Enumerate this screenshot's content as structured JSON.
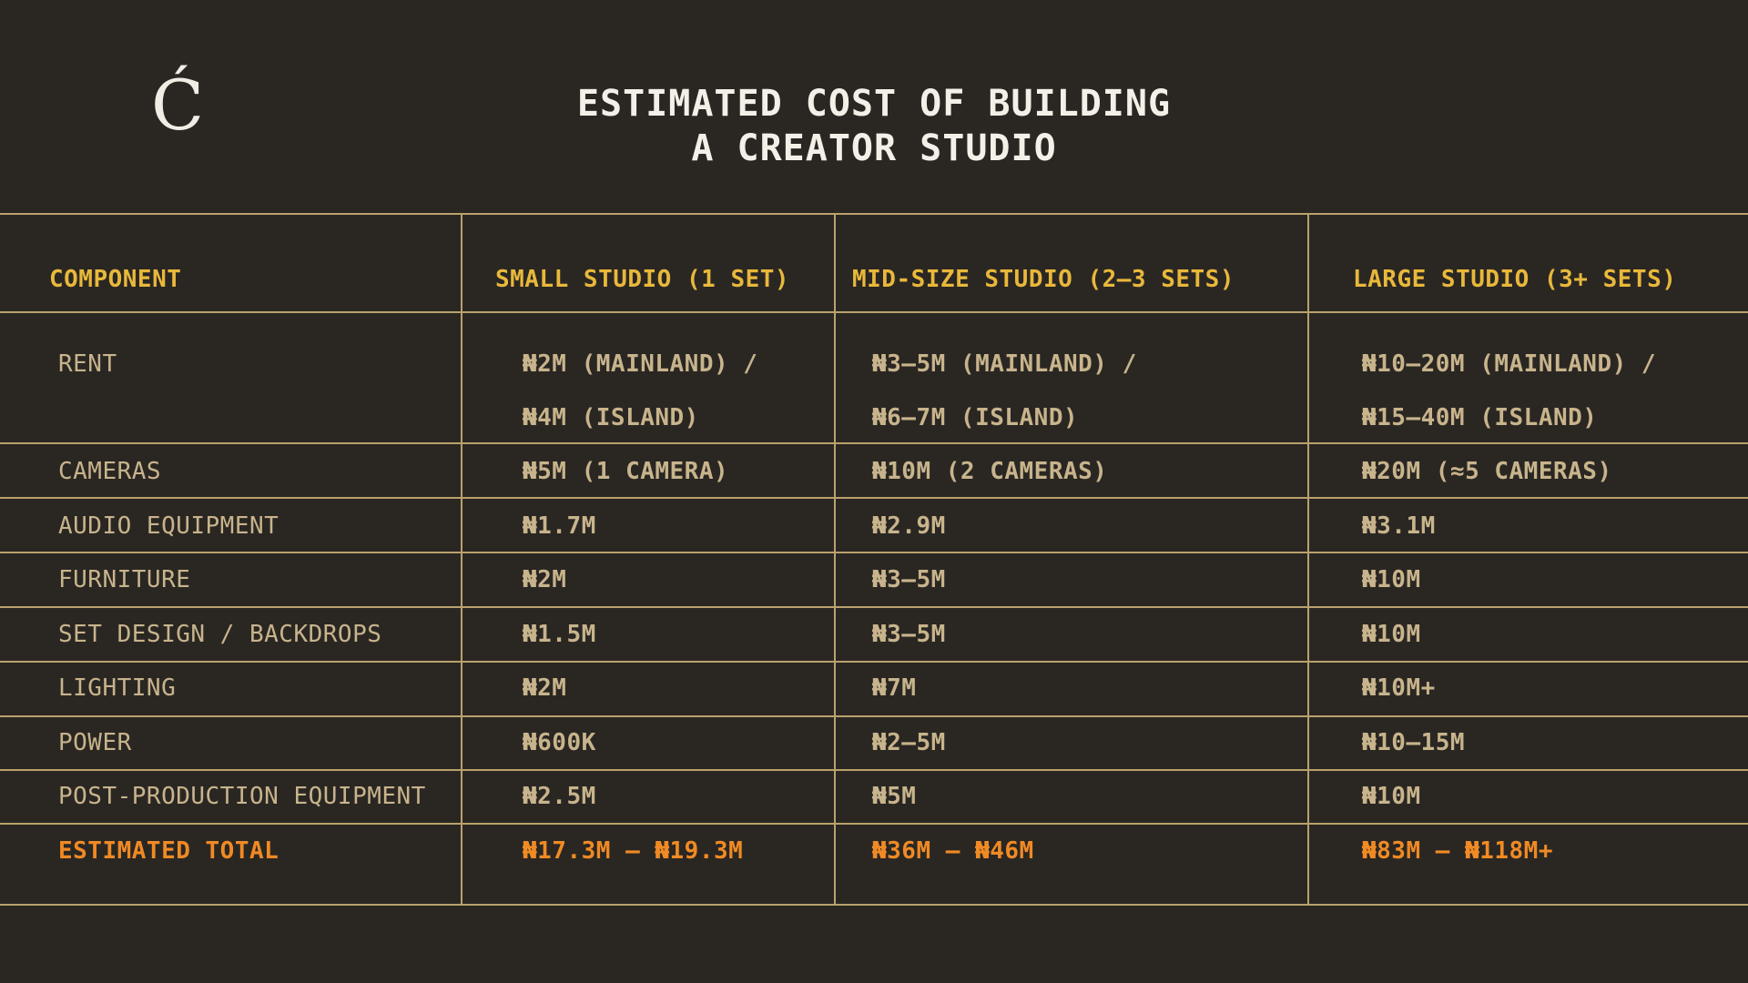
{
  "logo": "Ć",
  "title": {
    "line1": "ESTIMATED COST OF BUILDING",
    "line2": "A CREATOR STUDIO"
  },
  "table": {
    "headers": [
      "COMPONENT",
      "SMALL STUDIO (1 SET)",
      "MID-SIZE STUDIO (2–3 SETS)",
      "LARGE STUDIO (3+ SETS)"
    ],
    "rows": [
      {
        "component": "RENT",
        "small": [
          "₦2M (MAINLAND) /",
          "₦4M (ISLAND)"
        ],
        "mid": [
          "₦3–5M (MAINLAND) /",
          "₦6–7M (ISLAND)"
        ],
        "large": [
          "₦10–20M (MAINLAND) /",
          "₦15–40M (ISLAND)"
        ]
      },
      {
        "component": "CAMERAS",
        "small": "₦5M (1 CAMERA)",
        "mid": "₦10M (2 CAMERAS)",
        "large": "₦20M (≈5 CAMERAS)"
      },
      {
        "component": "AUDIO EQUIPMENT",
        "small": "₦1.7M",
        "mid": "₦2.9M",
        "large": "₦3.1M"
      },
      {
        "component": "FURNITURE",
        "small": "₦2M",
        "mid": "₦3–5M",
        "large": "₦10M"
      },
      {
        "component": "SET DESIGN / BACKDROPS",
        "small": "₦1.5M",
        "mid": "₦3–5M",
        "large": "₦10M"
      },
      {
        "component": "LIGHTING",
        "small": "₦2M",
        "mid": "₦7M",
        "large": "₦10M+"
      },
      {
        "component": "POWER",
        "small": "₦600K",
        "mid": "₦2–5M",
        "large": "₦10–15M"
      },
      {
        "component": "POST-PRODUCTION EQUIPMENT",
        "small": "₦2.5M",
        "mid": "₦5M",
        "large": "₦10M"
      }
    ],
    "total": {
      "component": "ESTIMATED TOTAL",
      "small": "₦17.3M – ₦19.3M",
      "mid": "₦36M – ₦46M",
      "large": "₦83M – ₦118M+"
    }
  },
  "colors": {
    "background": "#2a2723",
    "header_text": "#e9b83b",
    "body_text": "#c8b48c",
    "total_text": "#f08a24",
    "rule": "#b9a26b",
    "title_text": "#f4f0e8"
  }
}
